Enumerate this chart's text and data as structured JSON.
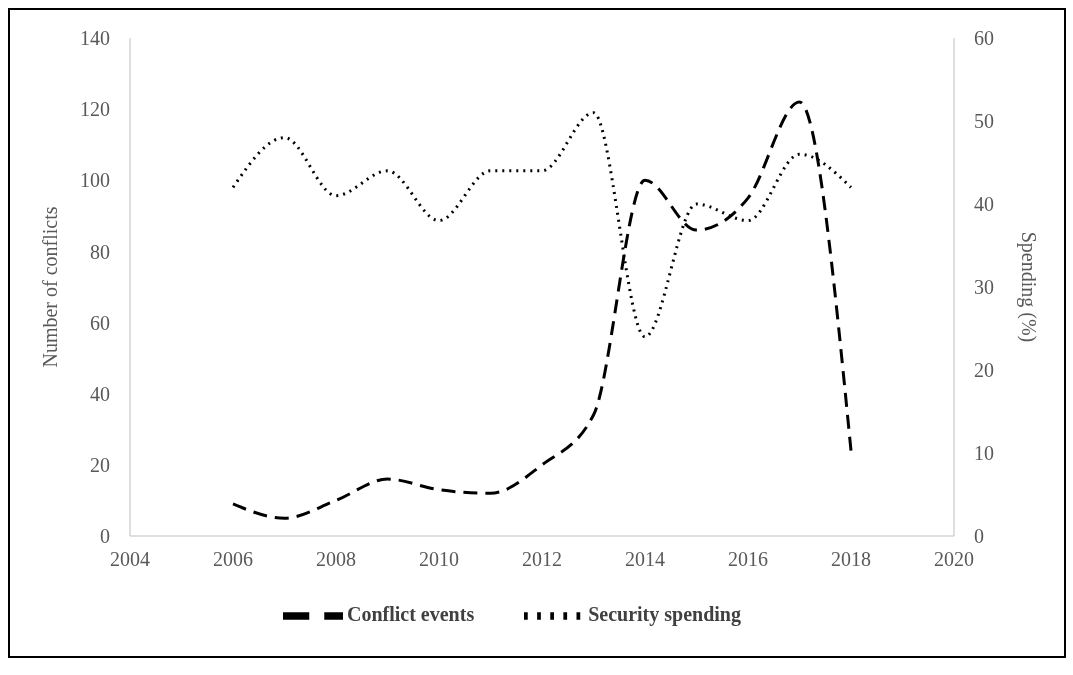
{
  "chart_data": {
    "type": "line",
    "xlabel": null,
    "ylabel": "Number of conflicts",
    "y2label": "Spending (%)",
    "x": [
      2006,
      2007,
      2008,
      2009,
      2010,
      2011,
      2012,
      2013,
      2014,
      2015,
      2016,
      2017,
      2018
    ],
    "series": [
      {
        "name": "Conflict events",
        "color": "#000000",
        "line_style": "dashed",
        "values": [
          9,
          5,
          10,
          16,
          13,
          12,
          20,
          34,
          100,
          86,
          95,
          122,
          24
        ]
      },
      {
        "name": "Security spending",
        "color": "#000000",
        "line_style": "dotted",
        "axis": "y2",
        "values": [
          42,
          48,
          41,
          44,
          38,
          44,
          44,
          51,
          24,
          40,
          38,
          46,
          42
        ]
      }
    ],
    "xlim": [
      2004,
      2020
    ],
    "xticks": [
      2004,
      2006,
      2008,
      2010,
      2012,
      2014,
      2016,
      2018,
      2020
    ],
    "ylim": [
      0,
      140
    ],
    "yticks": [
      0,
      20,
      40,
      60,
      80,
      100,
      120,
      140
    ],
    "y2lim": [
      0,
      60
    ],
    "y2ticks": [
      0,
      10,
      20,
      30,
      40,
      50,
      60
    ],
    "grid": false,
    "legend": "bottom",
    "marker": "none"
  }
}
